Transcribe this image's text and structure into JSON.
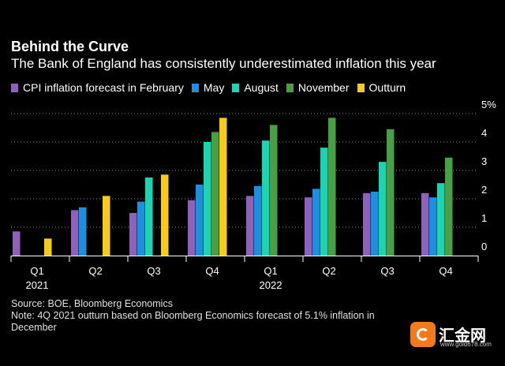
{
  "title": "Behind the Curve",
  "subtitle": "The Bank of England has consistently underestimated inflation this year",
  "footer": {
    "source": "Source: BOE, Bloomberg Economics",
    "note": "Note: 4Q 2021 outturn based on Bloomberg Economics forecast of 5.1% inflation in December"
  },
  "watermark": {
    "text": "汇金网",
    "url": "www.gold678.com"
  },
  "chart_data": {
    "type": "bar",
    "title": "Behind the Curve",
    "subtitle": "The Bank of England has consistently underestimated inflation this year",
    "categories": [
      "Q1",
      "Q2",
      "Q3",
      "Q4",
      "Q1",
      "Q2",
      "Q3",
      "Q4"
    ],
    "category_years": [
      "2021",
      "",
      "",
      "",
      "2022",
      "",
      "",
      ""
    ],
    "ylim": [
      0,
      5
    ],
    "yticks": [
      0,
      1,
      2,
      3,
      4,
      5
    ],
    "ytick_labels": [
      "0",
      "1",
      "2",
      "3",
      "4",
      "5%"
    ],
    "y_axis_side": "right",
    "grid": true,
    "legend_placement": "top",
    "series": [
      {
        "name": "CPI inflation forecast in February",
        "color": "#8e62b6",
        "values": [
          0.85,
          1.6,
          1.5,
          1.95,
          2.1,
          2.05,
          2.2,
          2.2
        ]
      },
      {
        "name": "May",
        "color": "#1f8fdc",
        "values": [
          null,
          1.7,
          1.9,
          2.5,
          2.45,
          2.35,
          2.25,
          2.05
        ]
      },
      {
        "name": "August",
        "color": "#1fd3b2",
        "values": [
          null,
          null,
          2.75,
          4.0,
          4.05,
          3.8,
          3.3,
          2.55
        ]
      },
      {
        "name": "November",
        "color": "#4a9e46",
        "values": [
          null,
          null,
          null,
          4.35,
          4.6,
          4.85,
          4.45,
          3.45
        ]
      },
      {
        "name": "Outturn",
        "color": "#f5cc1d",
        "values": [
          0.6,
          2.1,
          2.85,
          4.85,
          null,
          null,
          null,
          null
        ]
      }
    ]
  }
}
